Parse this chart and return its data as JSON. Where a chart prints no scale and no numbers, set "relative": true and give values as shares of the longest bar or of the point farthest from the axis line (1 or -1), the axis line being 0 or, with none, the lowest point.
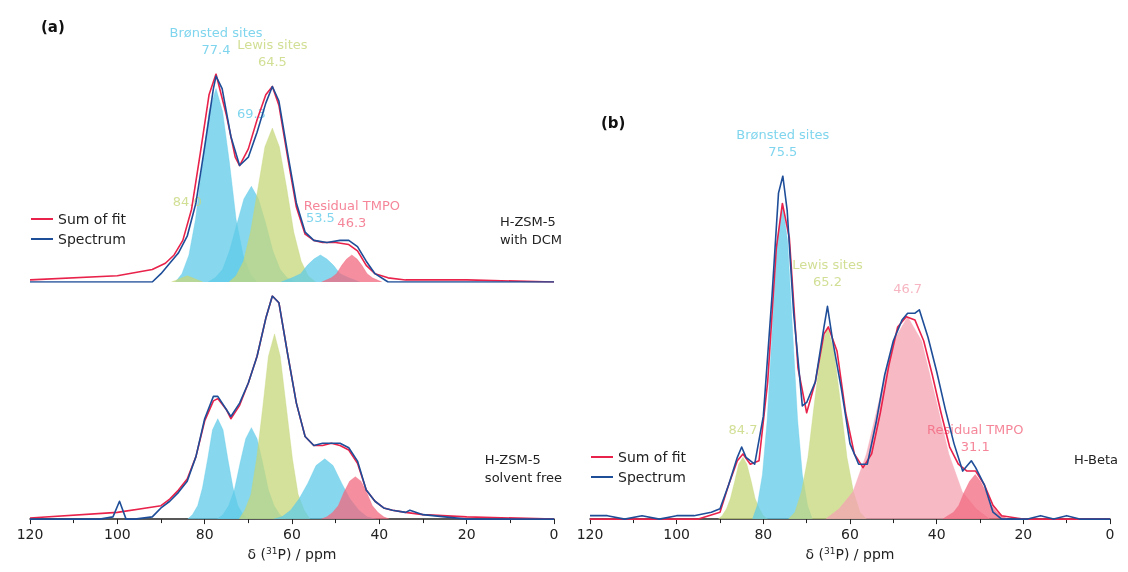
{
  "chart_data": [
    {
      "type": "line",
      "title": "(a)",
      "relative": true,
      "xlim": [
        120,
        0
      ],
      "tick_labels": false,
      "legend": "left",
      "annotations": [
        {
          "text": "77.4",
          "x": 77.4,
          "y": 1.0
        },
        {
          "text": "Brønsted sites",
          "x": 77.4,
          "y": 1.0
        },
        {
          "text": "64.5",
          "x": 64.5,
          "y": 0.94
        },
        {
          "text": "Lewis sites",
          "x": 64.5,
          "y": 0.94
        },
        {
          "text": "69.3",
          "x": 69.3,
          "y": 0.69
        },
        {
          "text": "84.0",
          "x": 84.0,
          "y": 0.27
        },
        {
          "text": "53.5",
          "x": 53.5,
          "y": 0.19
        },
        {
          "text": "46.3",
          "x": 46.3,
          "y": 0.17
        },
        {
          "text": "Residual TMPO",
          "x": 46.3,
          "y": 0.17
        },
        "H-ZSM-5\nwith DCM"
      ],
      "series": [
        {
          "type": "area",
          "color": "#5fcbe8",
          "x": [
            86.7,
            85.2,
            83.6,
            82.1,
            80.5,
            79.0,
            77.4,
            75.9,
            74.3,
            72.8,
            71.2,
            69.6,
            68.1
          ],
          "values": [
            0,
            0.04,
            0.13,
            0.3,
            0.57,
            0.82,
            0.93,
            0.82,
            0.57,
            0.3,
            0.13,
            0.04,
            0
          ]
        },
        {
          "type": "area",
          "color": "#5fcbe8",
          "x": [
            79.2,
            77.6,
            75.9,
            74.3,
            72.6,
            71.0,
            69.3,
            67.7,
            66.0,
            64.4,
            62.7,
            61.1,
            59.4
          ],
          "values": [
            0,
            0.02,
            0.06,
            0.15,
            0.28,
            0.4,
            0.46,
            0.4,
            0.28,
            0.15,
            0.06,
            0.02,
            0
          ]
        },
        {
          "type": "area",
          "color": "#c5d77a",
          "x": [
            74.4,
            72.8,
            71.1,
            69.5,
            67.8,
            66.2,
            64.5,
            62.9,
            61.2,
            59.6,
            57.9,
            56.3,
            54.6
          ],
          "values": [
            0,
            0.03,
            0.1,
            0.24,
            0.45,
            0.65,
            0.74,
            0.65,
            0.45,
            0.24,
            0.1,
            0.03,
            0
          ]
        },
        {
          "type": "area",
          "color": "#c5d77a",
          "x": [
            87.6,
            86.4,
            85.2,
            84.0,
            82.8,
            81.6,
            80.4
          ],
          "values": [
            0,
            0.01,
            0.02,
            0.03,
            0.02,
            0.01,
            0
          ]
        },
        {
          "type": "area",
          "color": "#5fcbe8",
          "x": [
            62.5,
            60.0,
            58.0,
            56.5,
            55.0,
            53.5,
            52.0,
            50.5,
            49.0,
            47.0,
            44.5
          ],
          "values": [
            0,
            0.02,
            0.04,
            0.08,
            0.11,
            0.13,
            0.11,
            0.08,
            0.04,
            0.02,
            0
          ]
        },
        {
          "type": "area",
          "color": "#f2687f",
          "x": [
            53.2,
            51.0,
            49.8,
            48.6,
            47.5,
            46.3,
            45.1,
            44.0,
            42.8,
            41.6,
            39.4
          ],
          "values": [
            0,
            0.02,
            0.04,
            0.08,
            0.11,
            0.13,
            0.11,
            0.08,
            0.04,
            0.02,
            0
          ]
        },
        {
          "name": "Sum of fit",
          "color": "#e8224a",
          "x": [
            120,
            100,
            92,
            89,
            87,
            85,
            83,
            81,
            79,
            77.4,
            75,
            73,
            72,
            70,
            68,
            66,
            64.5,
            63,
            61,
            59,
            57,
            55,
            53,
            50,
            47,
            45,
            43,
            41,
            38,
            34,
            30,
            20,
            0
          ],
          "values": [
            0.01,
            0.03,
            0.06,
            0.09,
            0.13,
            0.2,
            0.35,
            0.62,
            0.9,
            1.0,
            0.8,
            0.6,
            0.56,
            0.64,
            0.78,
            0.9,
            0.94,
            0.85,
            0.6,
            0.36,
            0.23,
            0.2,
            0.19,
            0.19,
            0.18,
            0.15,
            0.08,
            0.04,
            0.02,
            0.01,
            0.01,
            0.01,
            0
          ]
        },
        {
          "name": "Spectrum",
          "color": "#1f4e99",
          "x": [
            120,
            110,
            100,
            92,
            90,
            88,
            86,
            84,
            82,
            80,
            78,
            77.4,
            76,
            74,
            72,
            70,
            68,
            66,
            64.5,
            63,
            61,
            59,
            57,
            55,
            52,
            49,
            47,
            45,
            43,
            41,
            38,
            30,
            20,
            10,
            0
          ],
          "values": [
            0,
            0,
            0,
            0,
            0.04,
            0.09,
            0.14,
            0.22,
            0.38,
            0.65,
            0.93,
            0.99,
            0.93,
            0.7,
            0.56,
            0.6,
            0.72,
            0.86,
            0.94,
            0.87,
            0.62,
            0.38,
            0.24,
            0.2,
            0.19,
            0.2,
            0.2,
            0.17,
            0.1,
            0.04,
            0,
            0,
            0,
            0,
            0
          ]
        }
      ]
    },
    {
      "type": "line",
      "relative": true,
      "xlim": [
        120,
        0
      ],
      "xticks": [
        120,
        100,
        80,
        60,
        40,
        20,
        0
      ],
      "xlabel": "δ ($^{31}$P) / ppm",
      "annotations": [
        "H-ZSM-5\nsolvent free"
      ],
      "series": [
        {
          "type": "area",
          "color": "#5fcbe8",
          "x": [
            83.9,
            82.8,
            81.6,
            80.5,
            79.3,
            78.2,
            77.0,
            75.8,
            74.7,
            73.5,
            72.4,
            71.2,
            70.1
          ],
          "values": [
            0,
            0.02,
            0.06,
            0.14,
            0.27,
            0.4,
            0.45,
            0.4,
            0.27,
            0.14,
            0.06,
            0.02,
            0
          ]
        },
        {
          "type": "area",
          "color": "#5fcbe8",
          "x": [
            77.1,
            75.8,
            74.5,
            73.2,
            71.9,
            70.6,
            69.3,
            68.0,
            66.7,
            65.4,
            64.1,
            62.8,
            61.5
          ],
          "values": [
            0,
            0.02,
            0.06,
            0.13,
            0.25,
            0.36,
            0.41,
            0.36,
            0.25,
            0.13,
            0.06,
            0.02,
            0
          ]
        },
        {
          "type": "area",
          "color": "#c5d77a",
          "x": [
            72.1,
            70.8,
            69.4,
            68.1,
            66.7,
            65.4,
            64.0,
            62.7,
            61.3,
            59.9,
            58.6,
            57.2,
            55.9
          ],
          "values": [
            0,
            0.04,
            0.11,
            0.27,
            0.5,
            0.73,
            0.83,
            0.73,
            0.5,
            0.27,
            0.11,
            0.04,
            0
          ]
        },
        {
          "type": "area",
          "color": "#5fcbe8",
          "x": [
            64.2,
            62.3,
            60.3,
            58.4,
            56.4,
            54.5,
            52.5,
            50.6,
            48.6,
            46.7,
            44.7,
            42.8,
            40.8
          ],
          "values": [
            0,
            0.01,
            0.04,
            0.09,
            0.16,
            0.24,
            0.27,
            0.24,
            0.16,
            0.09,
            0.04,
            0.01,
            0
          ]
        },
        {
          "type": "area",
          "color": "#f2687f",
          "x": [
            53.3,
            52.0,
            50.7,
            49.4,
            48.1,
            46.8,
            45.5,
            44.2,
            42.9,
            41.6,
            40.3,
            39.0,
            37.7
          ],
          "values": [
            0,
            0.01,
            0.03,
            0.06,
            0.12,
            0.17,
            0.19,
            0.17,
            0.12,
            0.06,
            0.03,
            0.01,
            0
          ]
        },
        {
          "color": "#e8224a",
          "x": [
            120,
            100,
            90,
            88,
            86,
            84,
            82,
            80,
            78,
            77,
            75,
            74,
            72,
            70,
            68,
            66,
            64.5,
            63,
            61,
            59,
            57,
            55,
            53,
            51,
            49,
            47,
            45,
            43,
            41,
            39,
            37,
            34,
            30,
            20,
            0
          ],
          "values": [
            0.005,
            0.03,
            0.06,
            0.09,
            0.13,
            0.18,
            0.28,
            0.44,
            0.53,
            0.54,
            0.49,
            0.45,
            0.51,
            0.61,
            0.73,
            0.9,
            1.0,
            0.97,
            0.74,
            0.52,
            0.37,
            0.33,
            0.33,
            0.34,
            0.33,
            0.31,
            0.25,
            0.13,
            0.08,
            0.05,
            0.04,
            0.03,
            0.02,
            0.01,
            0
          ]
        },
        {
          "color": "#1f4e99",
          "x": [
            120,
            110,
            104,
            101,
            99.5,
            98,
            96,
            92,
            90,
            88,
            86,
            84,
            82,
            80,
            78,
            77,
            75,
            74,
            72,
            70,
            68,
            66,
            64.5,
            63,
            61,
            59,
            57,
            55,
            53,
            51,
            49,
            47,
            45,
            43,
            41,
            39,
            37,
            34,
            33,
            30,
            25,
            20,
            10,
            0
          ],
          "values": [
            0,
            0,
            0,
            0.01,
            0.08,
            0,
            0,
            0.01,
            0.05,
            0.08,
            0.12,
            0.17,
            0.28,
            0.45,
            0.55,
            0.55,
            0.49,
            0.46,
            0.52,
            0.61,
            0.73,
            0.9,
            1.0,
            0.97,
            0.74,
            0.52,
            0.37,
            0.33,
            0.34,
            0.34,
            0.34,
            0.32,
            0.26,
            0.13,
            0.08,
            0.05,
            0.04,
            0.03,
            0.04,
            0.02,
            0.01,
            0,
            0,
            0
          ]
        }
      ]
    },
    {
      "type": "line",
      "title": "(b)",
      "relative": true,
      "xlim": [
        120,
        0
      ],
      "xticks": [
        120,
        100,
        80,
        60,
        40,
        20,
        0
      ],
      "xlabel": "δ ($^{31}$P) / ppm",
      "legend": "left",
      "annotations": [
        {
          "text": "75.5",
          "x": 75.5,
          "y": 1.0
        },
        {
          "text": "Brønsted sites",
          "x": 75.5,
          "y": 1.0
        },
        {
          "text": "65.2",
          "x": 65.2,
          "y": 0.62
        },
        {
          "text": "Lewis sites",
          "x": 65.2,
          "y": 0.62
        },
        {
          "text": "46.7",
          "x": 46.7,
          "y": 0.6
        },
        {
          "text": "84.7",
          "x": 84.7,
          "y": 0.19
        },
        {
          "text": "31.1",
          "x": 31.1,
          "y": 0.14
        },
        {
          "text": "Residual TMPO",
          "x": 31.1,
          "y": 0.14
        },
        "H-Beta"
      ],
      "series": [
        {
          "type": "area",
          "color": "#c5d77a",
          "x": [
            90.4,
            89.5,
            88.5,
            87.6,
            86.6,
            85.7,
            84.7,
            83.8,
            82.8,
            81.9,
            80.9,
            80.0,
            79.0
          ],
          "values": [
            0,
            0.01,
            0.03,
            0.06,
            0.11,
            0.16,
            0.18,
            0.16,
            0.11,
            0.06,
            0.03,
            0.01,
            0
          ]
        },
        {
          "type": "area",
          "color": "#5fcbe8",
          "x": [
            82.5,
            81.4,
            80.2,
            79.1,
            77.9,
            76.8,
            75.6,
            74.4,
            73.3,
            72.1,
            71.0,
            69.8,
            68.7
          ],
          "values": [
            0,
            0.04,
            0.13,
            0.29,
            0.56,
            0.81,
            0.92,
            0.81,
            0.56,
            0.29,
            0.13,
            0.04,
            0
          ]
        },
        {
          "type": "area",
          "color": "#c5d77a",
          "x": [
            74.2,
            72.7,
            71.2,
            69.7,
            68.2,
            66.7,
            65.2,
            63.7,
            62.2,
            60.7,
            59.2,
            57.7,
            56.2
          ],
          "values": [
            0,
            0.02,
            0.08,
            0.18,
            0.34,
            0.49,
            0.56,
            0.49,
            0.34,
            0.18,
            0.08,
            0.02,
            0
          ]
        },
        {
          "type": "area",
          "color": "#f4a3b2",
          "x": [
            65.6,
            62.5,
            59.3,
            56.2,
            53.0,
            49.9,
            46.7,
            43.5,
            40.4,
            37.2,
            34.1,
            30.9,
            27.8
          ],
          "values": [
            0,
            0.03,
            0.08,
            0.19,
            0.36,
            0.52,
            0.59,
            0.52,
            0.36,
            0.19,
            0.08,
            0.03,
            0
          ]
        },
        {
          "type": "area",
          "color": "#f2687f",
          "x": [
            38.6,
            37.4,
            36.1,
            34.9,
            33.6,
            32.4,
            31.1,
            29.9,
            28.6,
            27.4,
            26.1,
            24.9,
            23.6
          ],
          "values": [
            0,
            0.01,
            0.02,
            0.04,
            0.08,
            0.11,
            0.13,
            0.11,
            0.08,
            0.04,
            0.02,
            0.01,
            0
          ]
        },
        {
          "name": "Sum of fit",
          "color": "#e8224a",
          "x": [
            120,
            95,
            90,
            88,
            86,
            84.7,
            83,
            81,
            79,
            77,
            75.6,
            74,
            72,
            70,
            68,
            66,
            65,
            63,
            61,
            59,
            57,
            55,
            53,
            51,
            49,
            47,
            45,
            43,
            41,
            39,
            37,
            35,
            33,
            31,
            29,
            27,
            25,
            20,
            0
          ],
          "values": [
            0,
            0,
            0.02,
            0.1,
            0.17,
            0.19,
            0.16,
            0.17,
            0.4,
            0.79,
            0.92,
            0.82,
            0.44,
            0.31,
            0.4,
            0.54,
            0.56,
            0.49,
            0.31,
            0.19,
            0.15,
            0.19,
            0.31,
            0.45,
            0.56,
            0.59,
            0.58,
            0.52,
            0.42,
            0.31,
            0.21,
            0.16,
            0.14,
            0.14,
            0.1,
            0.04,
            0.01,
            0,
            0
          ]
        },
        {
          "name": "Spectrum",
          "color": "#1f4e99",
          "x": [
            120,
            116,
            112,
            108,
            104,
            100,
            96,
            92,
            90,
            88,
            86,
            85,
            84,
            82,
            80,
            78,
            76.5,
            75.5,
            74.5,
            73,
            71,
            70,
            68,
            66,
            65.2,
            64,
            62,
            60,
            58,
            56,
            54,
            52,
            50,
            48,
            46.7,
            45,
            44,
            42,
            40,
            38,
            36,
            34,
            32,
            31,
            29,
            27,
            25,
            22,
            19,
            16,
            13,
            10,
            7,
            4,
            0
          ],
          "values": [
            0.01,
            0.01,
            0,
            0.01,
            0,
            0.01,
            0.01,
            0.02,
            0.03,
            0.1,
            0.18,
            0.21,
            0.18,
            0.16,
            0.3,
            0.65,
            0.95,
            1.0,
            0.9,
            0.6,
            0.33,
            0.34,
            0.4,
            0.56,
            0.62,
            0.52,
            0.38,
            0.22,
            0.16,
            0.16,
            0.28,
            0.42,
            0.52,
            0.58,
            0.6,
            0.6,
            0.61,
            0.53,
            0.43,
            0.32,
            0.22,
            0.14,
            0.17,
            0.15,
            0.1,
            0.02,
            0,
            0,
            0,
            0.01,
            0,
            0.01,
            0,
            0,
            0
          ]
        }
      ]
    }
  ]
}
